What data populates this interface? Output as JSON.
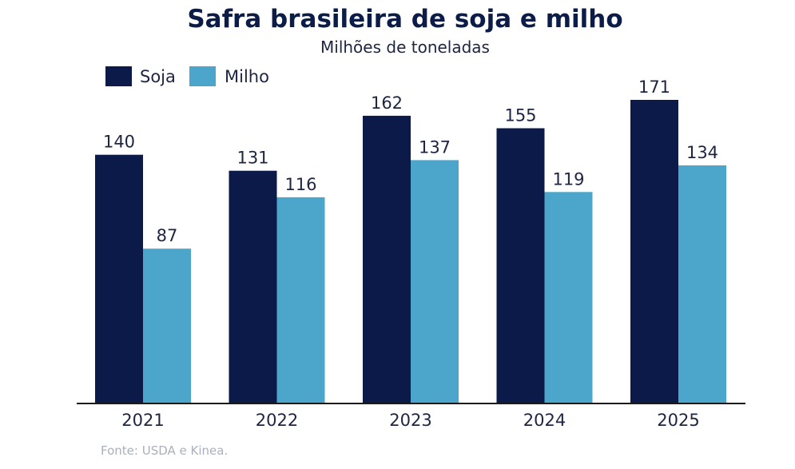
{
  "chart_data": {
    "type": "bar",
    "title": "Safra brasileira de soja e milho",
    "subtitle": "Milhões de toneladas",
    "categories": [
      "2021",
      "2022",
      "2023",
      "2024",
      "2025"
    ],
    "series": [
      {
        "name": "Soja",
        "values": [
          140,
          131,
          162,
          155,
          171
        ],
        "color": "#0b1a48"
      },
      {
        "name": "Milho",
        "values": [
          87,
          116,
          137,
          119,
          134
        ],
        "color": "#4ca5cb"
      }
    ],
    "ylim": [
      0,
      171
    ],
    "grid": false,
    "legend_position": "top-left",
    "source": "Fonte: USDA e Kinea."
  }
}
